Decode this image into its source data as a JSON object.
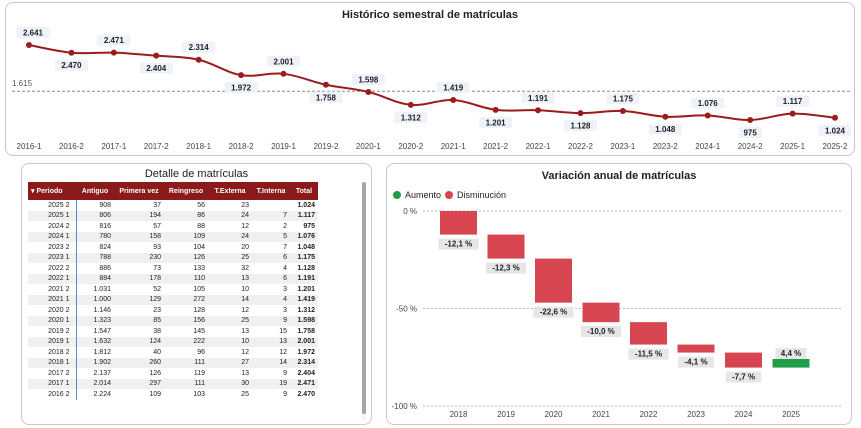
{
  "line_chart": {
    "title": "Histórico semestral de matrículas",
    "reference_label": "1.615",
    "chart_data": {
      "type": "line",
      "title": "Histórico semestral de matrículas",
      "categories": [
        "2016-1",
        "2016-2",
        "2017-1",
        "2017-2",
        "2018-1",
        "2018-2",
        "2019-1",
        "2019-2",
        "2020-1",
        "2020-2",
        "2021-1",
        "2021-2",
        "2022-1",
        "2022-2",
        "2023-1",
        "2023-2",
        "2024-1",
        "2024-2",
        "2025-1",
        "2025-2"
      ],
      "values": [
        2641,
        2470,
        2471,
        2404,
        2314,
        1972,
        2001,
        1758,
        1598,
        1312,
        1419,
        1201,
        1191,
        1128,
        1175,
        1048,
        1076,
        975,
        1117,
        1024
      ],
      "value_labels": [
        "2.641",
        "2.470",
        "2.471",
        "2.404",
        "2.314",
        "1.972",
        "2.001",
        "1.758",
        "1.598",
        "1.312",
        "1.419",
        "1.201",
        "1.191",
        "1.128",
        "1.175",
        "1.048",
        "1.076",
        "975",
        "1.117",
        "1.024"
      ],
      "reference_line": 1615,
      "colors": {
        "line": "#9b1c1c",
        "reference": "#8a8a8a"
      }
    }
  },
  "table": {
    "title": "Detalle de matrículas",
    "headers": [
      "Periodo",
      "Antiguo",
      "Primera vez",
      "Reingreso",
      "T.Externa",
      "T.Interna",
      "Total"
    ],
    "rows": [
      [
        "2025 2",
        "908",
        "37",
        "56",
        "23",
        "",
        "1.024"
      ],
      [
        "2025 1",
        "806",
        "194",
        "86",
        "24",
        "7",
        "1.117"
      ],
      [
        "2024 2",
        "816",
        "57",
        "88",
        "12",
        "2",
        "975"
      ],
      [
        "2024 1",
        "780",
        "158",
        "109",
        "24",
        "5",
        "1.076"
      ],
      [
        "2023 2",
        "824",
        "93",
        "104",
        "20",
        "7",
        "1.048"
      ],
      [
        "2023 1",
        "788",
        "230",
        "126",
        "25",
        "6",
        "1.175"
      ],
      [
        "2022 2",
        "886",
        "73",
        "133",
        "32",
        "4",
        "1.128"
      ],
      [
        "2022 1",
        "884",
        "178",
        "110",
        "13",
        "6",
        "1.191"
      ],
      [
        "2021 2",
        "1.031",
        "52",
        "105",
        "10",
        "3",
        "1.201"
      ],
      [
        "2021 1",
        "1.000",
        "129",
        "272",
        "14",
        "4",
        "1.419"
      ],
      [
        "2020 2",
        "1.146",
        "23",
        "128",
        "12",
        "3",
        "1.312"
      ],
      [
        "2020 1",
        "1.323",
        "85",
        "156",
        "25",
        "9",
        "1.598"
      ],
      [
        "2019 2",
        "1.547",
        "38",
        "145",
        "13",
        "15",
        "1.758"
      ],
      [
        "2019 1",
        "1.632",
        "124",
        "222",
        "10",
        "13",
        "2.001"
      ],
      [
        "2018 2",
        "1.812",
        "40",
        "96",
        "12",
        "12",
        "1.972"
      ],
      [
        "2018 1",
        "1.902",
        "260",
        "111",
        "27",
        "14",
        "2.314"
      ],
      [
        "2017 2",
        "2.137",
        "126",
        "119",
        "13",
        "9",
        "2.404"
      ],
      [
        "2017 1",
        "2.014",
        "297",
        "111",
        "30",
        "19",
        "2.471"
      ],
      [
        "2016 2",
        "2.224",
        "109",
        "103",
        "25",
        "9",
        "2.470"
      ]
    ]
  },
  "waterfall": {
    "title": "Variación anual de matrículas",
    "legend": [
      {
        "label": "Aumento",
        "color": "#1e9e48"
      },
      {
        "label": "Disminución",
        "color": "#d64550"
      }
    ],
    "chart_data": {
      "type": "bar",
      "subtype": "waterfall",
      "title": "Variación anual de matrículas",
      "categories": [
        "2018",
        "2019",
        "2020",
        "2021",
        "2022",
        "2023",
        "2024",
        "2025"
      ],
      "values": [
        -12.1,
        -12.3,
        -22.6,
        -10.0,
        -11.5,
        -4.1,
        -7.7,
        4.4
      ],
      "value_labels": [
        "-12,1 %",
        "-12,3 %",
        "-22,6 %",
        "-10,0 %",
        "-11,5 %",
        "-4,1 %",
        "-7,7 %",
        "4,4 %"
      ],
      "ylim": [
        -100,
        0
      ],
      "y_ticks": [
        0,
        -50,
        -100
      ],
      "y_tick_labels": [
        "0 %",
        "-50 %",
        "-100 %"
      ],
      "colors": {
        "increase": "#1e9e48",
        "decrease": "#d64550"
      }
    }
  }
}
